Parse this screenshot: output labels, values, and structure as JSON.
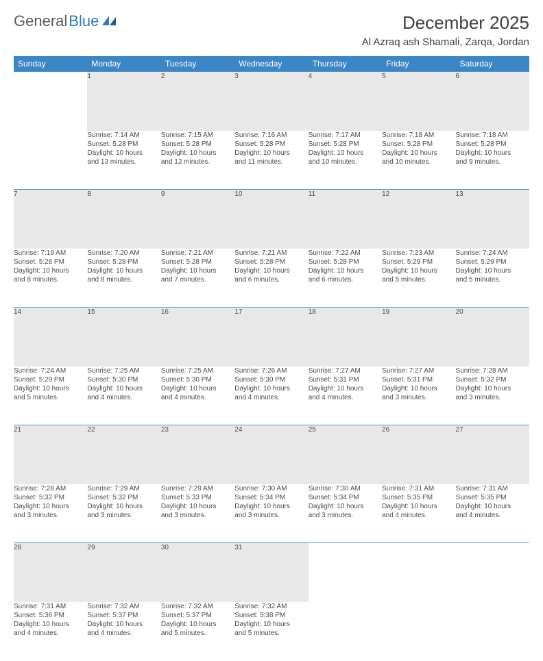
{
  "logo": {
    "text1": "General",
    "text2": "Blue"
  },
  "title": "December 2025",
  "location": "Al Azraq ash Shamali, Zarqa, Jordan",
  "colors": {
    "header_bg": "#3b86c6",
    "header_fg": "#ffffff",
    "daynum_bg": "#e8e8e8",
    "row_border": "#5b8fbf",
    "text": "#4a4a4a",
    "logo_blue": "#2f7bbf"
  },
  "weekdays": [
    "Sunday",
    "Monday",
    "Tuesday",
    "Wednesday",
    "Thursday",
    "Friday",
    "Saturday"
  ],
  "weeks": [
    {
      "days": [
        {
          "num": "",
          "sunrise": "",
          "sunset": "",
          "daylight1": "",
          "daylight2": ""
        },
        {
          "num": "1",
          "sunrise": "Sunrise: 7:14 AM",
          "sunset": "Sunset: 5:28 PM",
          "daylight1": "Daylight: 10 hours",
          "daylight2": "and 13 minutes."
        },
        {
          "num": "2",
          "sunrise": "Sunrise: 7:15 AM",
          "sunset": "Sunset: 5:28 PM",
          "daylight1": "Daylight: 10 hours",
          "daylight2": "and 12 minutes."
        },
        {
          "num": "3",
          "sunrise": "Sunrise: 7:16 AM",
          "sunset": "Sunset: 5:28 PM",
          "daylight1": "Daylight: 10 hours",
          "daylight2": "and 11 minutes."
        },
        {
          "num": "4",
          "sunrise": "Sunrise: 7:17 AM",
          "sunset": "Sunset: 5:28 PM",
          "daylight1": "Daylight: 10 hours",
          "daylight2": "and 10 minutes."
        },
        {
          "num": "5",
          "sunrise": "Sunrise: 7:18 AM",
          "sunset": "Sunset: 5:28 PM",
          "daylight1": "Daylight: 10 hours",
          "daylight2": "and 10 minutes."
        },
        {
          "num": "6",
          "sunrise": "Sunrise: 7:18 AM",
          "sunset": "Sunset: 5:28 PM",
          "daylight1": "Daylight: 10 hours",
          "daylight2": "and 9 minutes."
        }
      ]
    },
    {
      "days": [
        {
          "num": "7",
          "sunrise": "Sunrise: 7:19 AM",
          "sunset": "Sunset: 5:28 PM",
          "daylight1": "Daylight: 10 hours",
          "daylight2": "and 8 minutes."
        },
        {
          "num": "8",
          "sunrise": "Sunrise: 7:20 AM",
          "sunset": "Sunset: 5:28 PM",
          "daylight1": "Daylight: 10 hours",
          "daylight2": "and 8 minutes."
        },
        {
          "num": "9",
          "sunrise": "Sunrise: 7:21 AM",
          "sunset": "Sunset: 5:28 PM",
          "daylight1": "Daylight: 10 hours",
          "daylight2": "and 7 minutes."
        },
        {
          "num": "10",
          "sunrise": "Sunrise: 7:21 AM",
          "sunset": "Sunset: 5:28 PM",
          "daylight1": "Daylight: 10 hours",
          "daylight2": "and 6 minutes."
        },
        {
          "num": "11",
          "sunrise": "Sunrise: 7:22 AM",
          "sunset": "Sunset: 5:28 PM",
          "daylight1": "Daylight: 10 hours",
          "daylight2": "and 6 minutes."
        },
        {
          "num": "12",
          "sunrise": "Sunrise: 7:23 AM",
          "sunset": "Sunset: 5:29 PM",
          "daylight1": "Daylight: 10 hours",
          "daylight2": "and 5 minutes."
        },
        {
          "num": "13",
          "sunrise": "Sunrise: 7:24 AM",
          "sunset": "Sunset: 5:29 PM",
          "daylight1": "Daylight: 10 hours",
          "daylight2": "and 5 minutes."
        }
      ]
    },
    {
      "days": [
        {
          "num": "14",
          "sunrise": "Sunrise: 7:24 AM",
          "sunset": "Sunset: 5:29 PM",
          "daylight1": "Daylight: 10 hours",
          "daylight2": "and 5 minutes."
        },
        {
          "num": "15",
          "sunrise": "Sunrise: 7:25 AM",
          "sunset": "Sunset: 5:30 PM",
          "daylight1": "Daylight: 10 hours",
          "daylight2": "and 4 minutes."
        },
        {
          "num": "16",
          "sunrise": "Sunrise: 7:25 AM",
          "sunset": "Sunset: 5:30 PM",
          "daylight1": "Daylight: 10 hours",
          "daylight2": "and 4 minutes."
        },
        {
          "num": "17",
          "sunrise": "Sunrise: 7:26 AM",
          "sunset": "Sunset: 5:30 PM",
          "daylight1": "Daylight: 10 hours",
          "daylight2": "and 4 minutes."
        },
        {
          "num": "18",
          "sunrise": "Sunrise: 7:27 AM",
          "sunset": "Sunset: 5:31 PM",
          "daylight1": "Daylight: 10 hours",
          "daylight2": "and 4 minutes."
        },
        {
          "num": "19",
          "sunrise": "Sunrise: 7:27 AM",
          "sunset": "Sunset: 5:31 PM",
          "daylight1": "Daylight: 10 hours",
          "daylight2": "and 3 minutes."
        },
        {
          "num": "20",
          "sunrise": "Sunrise: 7:28 AM",
          "sunset": "Sunset: 5:32 PM",
          "daylight1": "Daylight: 10 hours",
          "daylight2": "and 3 minutes."
        }
      ]
    },
    {
      "days": [
        {
          "num": "21",
          "sunrise": "Sunrise: 7:28 AM",
          "sunset": "Sunset: 5:32 PM",
          "daylight1": "Daylight: 10 hours",
          "daylight2": "and 3 minutes."
        },
        {
          "num": "22",
          "sunrise": "Sunrise: 7:29 AM",
          "sunset": "Sunset: 5:32 PM",
          "daylight1": "Daylight: 10 hours",
          "daylight2": "and 3 minutes."
        },
        {
          "num": "23",
          "sunrise": "Sunrise: 7:29 AM",
          "sunset": "Sunset: 5:33 PM",
          "daylight1": "Daylight: 10 hours",
          "daylight2": "and 3 minutes."
        },
        {
          "num": "24",
          "sunrise": "Sunrise: 7:30 AM",
          "sunset": "Sunset: 5:34 PM",
          "daylight1": "Daylight: 10 hours",
          "daylight2": "and 3 minutes."
        },
        {
          "num": "25",
          "sunrise": "Sunrise: 7:30 AM",
          "sunset": "Sunset: 5:34 PM",
          "daylight1": "Daylight: 10 hours",
          "daylight2": "and 3 minutes."
        },
        {
          "num": "26",
          "sunrise": "Sunrise: 7:31 AM",
          "sunset": "Sunset: 5:35 PM",
          "daylight1": "Daylight: 10 hours",
          "daylight2": "and 4 minutes."
        },
        {
          "num": "27",
          "sunrise": "Sunrise: 7:31 AM",
          "sunset": "Sunset: 5:35 PM",
          "daylight1": "Daylight: 10 hours",
          "daylight2": "and 4 minutes."
        }
      ]
    },
    {
      "days": [
        {
          "num": "28",
          "sunrise": "Sunrise: 7:31 AM",
          "sunset": "Sunset: 5:36 PM",
          "daylight1": "Daylight: 10 hours",
          "daylight2": "and 4 minutes."
        },
        {
          "num": "29",
          "sunrise": "Sunrise: 7:32 AM",
          "sunset": "Sunset: 5:37 PM",
          "daylight1": "Daylight: 10 hours",
          "daylight2": "and 4 minutes."
        },
        {
          "num": "30",
          "sunrise": "Sunrise: 7:32 AM",
          "sunset": "Sunset: 5:37 PM",
          "daylight1": "Daylight: 10 hours",
          "daylight2": "and 5 minutes."
        },
        {
          "num": "31",
          "sunrise": "Sunrise: 7:32 AM",
          "sunset": "Sunset: 5:38 PM",
          "daylight1": "Daylight: 10 hours",
          "daylight2": "and 5 minutes."
        },
        {
          "num": "",
          "sunrise": "",
          "sunset": "",
          "daylight1": "",
          "daylight2": ""
        },
        {
          "num": "",
          "sunrise": "",
          "sunset": "",
          "daylight1": "",
          "daylight2": ""
        },
        {
          "num": "",
          "sunrise": "",
          "sunset": "",
          "daylight1": "",
          "daylight2": ""
        }
      ]
    }
  ]
}
